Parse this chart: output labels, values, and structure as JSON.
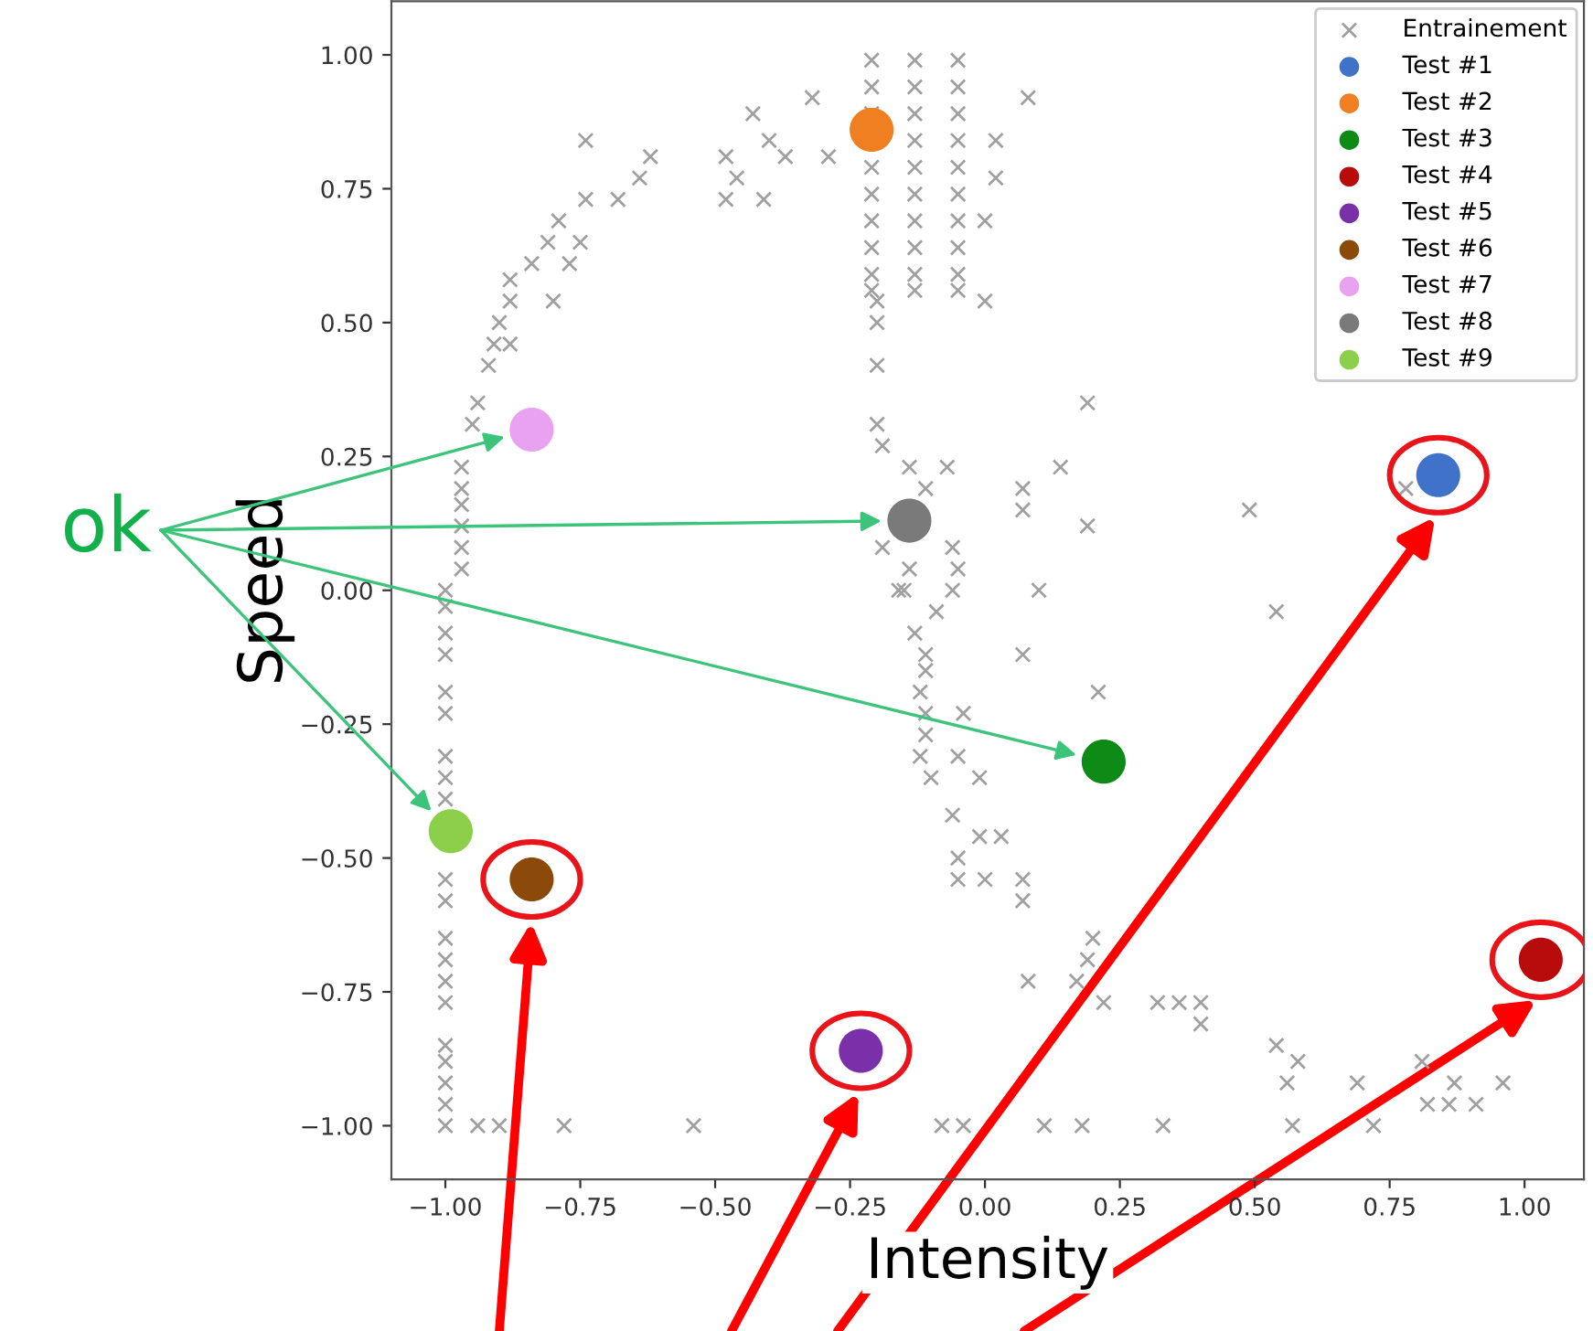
{
  "chart_data": {
    "type": "scatter",
    "xlabel": "Intensity",
    "ylabel": "Speed",
    "xlim": [
      -1.1,
      1.11
    ],
    "ylim": [
      -1.1,
      1.1
    ],
    "xticks": [
      {
        "value": -1.0,
        "label": "−1.00"
      },
      {
        "value": -0.75,
        "label": "−0.75"
      },
      {
        "value": -0.5,
        "label": "−0.50"
      },
      {
        "value": -0.25,
        "label": "−0.25"
      },
      {
        "value": 0.0,
        "label": "0.00"
      },
      {
        "value": 0.25,
        "label": "0.25"
      },
      {
        "value": 0.5,
        "label": "0.50"
      },
      {
        "value": 0.75,
        "label": "0.75"
      },
      {
        "value": 1.0,
        "label": "1.00"
      }
    ],
    "yticks": [
      {
        "value": -1.0,
        "label": "−1.00"
      },
      {
        "value": -0.75,
        "label": "−0.75"
      },
      {
        "value": -0.5,
        "label": "−0.50"
      },
      {
        "value": -0.25,
        "label": "−0.25"
      },
      {
        "value": 0.0,
        "label": "0.00"
      },
      {
        "value": 0.25,
        "label": "0.25"
      },
      {
        "value": 0.5,
        "label": "0.50"
      },
      {
        "value": 0.75,
        "label": "0.75"
      },
      {
        "value": 1.0,
        "label": "1.00"
      }
    ],
    "legend": "top right",
    "annotations": [
      "ok"
    ],
    "series": [
      {
        "name": "Entrainement",
        "color": "#a0a0a0",
        "marker": "cross",
        "x": [
          -0.74,
          -0.62,
          -0.64,
          -0.74,
          -0.68,
          -0.79,
          -0.75,
          -0.81,
          -0.84,
          -0.77,
          -0.88,
          -0.88,
          -0.8,
          -0.9,
          -0.91,
          -0.88,
          -0.92,
          -0.94,
          -0.95,
          -0.97,
          -0.97,
          -0.97,
          -0.97,
          -0.97,
          -0.97,
          -1.0,
          -1.0,
          -1.0,
          -1.0,
          -1.0,
          -1.0,
          -1.0,
          -1.0,
          -1.0,
          -1.0,
          -1.0,
          -1.0,
          -1.0,
          -1.0,
          -1.0,
          -1.0,
          -1.0,
          -1.0,
          -1.0,
          -1.0,
          -0.94,
          -0.9,
          -0.78,
          -0.54,
          -0.08,
          -0.04,
          -0.48,
          -0.37,
          -0.46,
          -0.48,
          -0.41,
          -0.43,
          -0.4,
          -0.32,
          -0.29,
          -0.21,
          -0.13,
          -0.05,
          -0.21,
          -0.13,
          -0.05,
          -0.21,
          -0.13,
          -0.05,
          -0.13,
          -0.05,
          -0.21,
          -0.13,
          -0.05,
          -0.21,
          -0.13,
          -0.05,
          -0.21,
          -0.13,
          -0.05,
          -0.21,
          -0.13,
          -0.05,
          -0.21,
          -0.13,
          -0.05,
          -0.21,
          -0.13,
          -0.05,
          -0.2,
          -0.2,
          -0.2,
          -0.2,
          -0.19,
          -0.14,
          -0.11,
          0.0,
          -0.07,
          -0.19,
          -0.06,
          -0.14,
          -0.05,
          -0.16,
          -0.06,
          -0.15,
          -0.09,
          -0.13,
          -0.11,
          -0.11,
          -0.12,
          -0.11,
          -0.04,
          -0.11,
          -0.12,
          -0.05,
          -0.1,
          -0.01,
          -0.06,
          -0.01,
          -0.05,
          -0.05,
          0.0,
          0.54,
          0.07,
          0.21,
          0.03,
          0.07,
          0.07,
          0.2,
          0.19,
          0.08,
          0.17,
          0.22,
          0.32,
          0.36,
          0.4,
          0.4,
          0.54,
          0.58,
          0.56,
          0.69,
          0.81,
          0.87,
          0.96,
          0.82,
          0.86,
          0.91,
          0.11,
          0.18,
          0.33,
          0.57,
          0.72,
          0.08,
          0.02,
          0.02,
          0.0,
          0.19,
          0.14,
          0.07,
          0.07,
          0.19,
          0.49,
          0.78,
          0.1
        ],
        "values": [
          0.84,
          0.81,
          0.77,
          0.73,
          0.73,
          0.69,
          0.65,
          0.65,
          0.61,
          0.61,
          0.58,
          0.54,
          0.54,
          0.5,
          0.46,
          0.46,
          0.42,
          0.35,
          0.31,
          0.23,
          0.19,
          0.16,
          0.12,
          0.08,
          0.04,
          0.0,
          -0.03,
          -0.08,
          -0.12,
          -0.19,
          -0.23,
          -0.31,
          -0.35,
          -0.39,
          -0.54,
          -0.58,
          -0.65,
          -0.69,
          -0.73,
          -0.77,
          -0.85,
          -0.88,
          -0.92,
          -0.96,
          -1.0,
          -1.0,
          -1.0,
          -1.0,
          -1.0,
          -1.0,
          -1.0,
          0.81,
          0.81,
          0.77,
          0.73,
          0.73,
          0.89,
          0.84,
          0.92,
          0.81,
          0.99,
          0.99,
          0.99,
          0.94,
          0.94,
          0.94,
          0.89,
          0.89,
          0.89,
          0.84,
          0.84,
          0.79,
          0.79,
          0.79,
          0.74,
          0.74,
          0.74,
          0.69,
          0.69,
          0.69,
          0.64,
          0.64,
          0.64,
          0.59,
          0.59,
          0.59,
          0.56,
          0.56,
          0.56,
          0.54,
          0.5,
          0.42,
          0.31,
          0.27,
          0.23,
          0.19,
          0.54,
          0.23,
          0.08,
          0.08,
          0.04,
          0.04,
          0.0,
          0.0,
          0.0,
          -0.04,
          -0.08,
          -0.12,
          -0.15,
          -0.19,
          -0.23,
          -0.23,
          -0.27,
          -0.31,
          -0.31,
          -0.35,
          -0.35,
          -0.42,
          -0.46,
          -0.5,
          -0.54,
          -0.54,
          -0.04,
          -0.12,
          -0.19,
          -0.46,
          -0.54,
          -0.58,
          -0.65,
          -0.69,
          -0.73,
          -0.73,
          -0.77,
          -0.77,
          -0.77,
          -0.77,
          -0.81,
          -0.85,
          -0.88,
          -0.92,
          -0.92,
          -0.88,
          -0.92,
          -0.92,
          -0.96,
          -0.96,
          -0.96,
          -1.0,
          -1.0,
          -1.0,
          -1.0,
          -1.0,
          0.92,
          0.84,
          0.77,
          0.69,
          0.35,
          0.23,
          0.19,
          0.15,
          0.12,
          0.15,
          0.19,
          0.0
        ]
      },
      {
        "name": "Test #1",
        "color": "#3f72c8",
        "marker": "circle",
        "x": [
          0.84
        ],
        "values": [
          0.215
        ]
      },
      {
        "name": "Test #2",
        "color": "#f07f22",
        "marker": "circle",
        "x": [
          -0.21
        ],
        "values": [
          0.86
        ]
      },
      {
        "name": "Test #3",
        "color": "#0e8a16",
        "marker": "circle",
        "x": [
          0.22
        ],
        "values": [
          -0.32
        ]
      },
      {
        "name": "Test #4",
        "color": "#b80c0c",
        "marker": "circle",
        "x": [
          1.03
        ],
        "values": [
          -0.69
        ]
      },
      {
        "name": "Test #5",
        "color": "#7a30a8",
        "marker": "circle",
        "x": [
          -0.23
        ],
        "values": [
          -0.86
        ]
      },
      {
        "name": "Test #6",
        "color": "#8b4a0a",
        "marker": "circle",
        "x": [
          -0.84
        ],
        "values": [
          -0.54
        ]
      },
      {
        "name": "Test #7",
        "color": "#e8a2f0",
        "marker": "circle",
        "x": [
          -0.84
        ],
        "values": [
          0.3
        ]
      },
      {
        "name": "Test #8",
        "color": "#7a7a7a",
        "marker": "circle",
        "x": [
          -0.14
        ],
        "values": [
          0.13
        ]
      },
      {
        "name": "Test #9",
        "color": "#8ccf4a",
        "marker": "circle",
        "x": [
          -0.99
        ],
        "values": [
          -0.45
        ]
      }
    ]
  }
}
